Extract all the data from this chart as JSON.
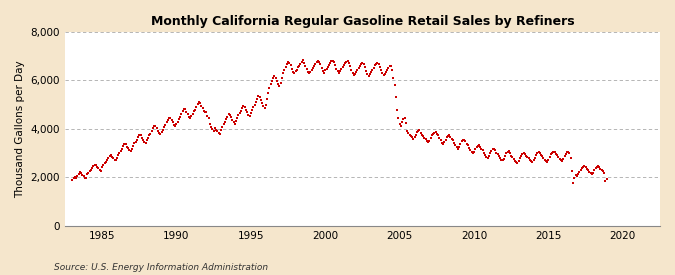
{
  "title": "Monthly California Regular Gasoline Retail Sales by Refiners",
  "ylabel": "Thousand Gallons per Day",
  "source": "Source: U.S. Energy Information Administration",
  "figure_bg_color": "#f5e6cc",
  "plot_bg_color": "#ffffff",
  "marker_color": "#cc0000",
  "grid_color": "#aaaaaa",
  "ylim": [
    0,
    8000
  ],
  "yticks": [
    0,
    2000,
    4000,
    6000,
    8000
  ],
  "ytick_labels": [
    "0",
    "2,000",
    "4,000",
    "6,000",
    "8,000"
  ],
  "xticks": [
    1985,
    1990,
    1995,
    2000,
    2005,
    2010,
    2015,
    2020
  ],
  "xlim": [
    1982.5,
    2022.5
  ],
  "start_year": 1983,
  "start_month": 1,
  "values": [
    1900,
    1980,
    2020,
    1960,
    2060,
    2140,
    2210,
    2190,
    2110,
    2060,
    1990,
    1960,
    2120,
    2180,
    2260,
    2300,
    2380,
    2450,
    2520,
    2500,
    2420,
    2370,
    2300,
    2270,
    2420,
    2520,
    2580,
    2640,
    2720,
    2800,
    2880,
    2920,
    2840,
    2800,
    2720,
    2700,
    2820,
    2940,
    3020,
    3100,
    3180,
    3280,
    3380,
    3360,
    3270,
    3220,
    3120,
    3080,
    3180,
    3300,
    3400,
    3470,
    3560,
    3660,
    3760,
    3730,
    3640,
    3560,
    3460,
    3420,
    3540,
    3640,
    3740,
    3800,
    3920,
    4020,
    4140,
    4110,
    4020,
    3930,
    3820,
    3780,
    3860,
    3960,
    4060,
    4150,
    4280,
    4380,
    4470,
    4460,
    4360,
    4270,
    4160,
    4100,
    4200,
    4300,
    4420,
    4500,
    4620,
    4720,
    4840,
    4820,
    4710,
    4620,
    4500,
    4440,
    4540,
    4620,
    4730,
    4790,
    4900,
    5010,
    5110,
    5070,
    4960,
    4850,
    4740,
    4680,
    4700,
    4550,
    4430,
    4220,
    4080,
    4000,
    3900,
    4020,
    3960,
    3900,
    3830,
    3800,
    3940,
    4080,
    4200,
    4280,
    4400,
    4510,
    4610,
    4580,
    4480,
    4380,
    4270,
    4210,
    4320,
    4440,
    4560,
    4640,
    4750,
    4860,
    4940,
    4910,
    4800,
    4700,
    4590,
    4530,
    4650,
    4780,
    4900,
    4980,
    5100,
    5220,
    5340,
    5300,
    5180,
    5070,
    4950,
    4880,
    5000,
    5220,
    5500,
    5700,
    5850,
    5960,
    6080,
    6200,
    6100,
    5980,
    5850,
    5780,
    5880,
    6080,
    6300,
    6420,
    6560,
    6680,
    6780,
    6720,
    6620,
    6490,
    6360,
    6290,
    6380,
    6440,
    6540,
    6600,
    6680,
    6780,
    6850,
    6700,
    6600,
    6460,
    6350,
    6290,
    6360,
    6430,
    6520,
    6580,
    6670,
    6770,
    6820,
    6770,
    6660,
    6510,
    6390,
    6320,
    6420,
    6490,
    6570,
    6640,
    6720,
    6800,
    6820,
    6760,
    6640,
    6490,
    6380,
    6320,
    6400,
    6470,
    6550,
    6620,
    6700,
    6760,
    6810,
    6710,
    6590,
    6450,
    6300,
    6230,
    6280,
    6350,
    6440,
    6510,
    6590,
    6670,
    6720,
    6670,
    6540,
    6400,
    6260,
    6200,
    6260,
    6340,
    6440,
    6530,
    6620,
    6680,
    6720,
    6680,
    6550,
    6420,
    6290,
    6230,
    6280,
    6360,
    6440,
    6510,
    6590,
    6580,
    6440,
    6100,
    5800,
    5320,
    4800,
    4450,
    4200,
    4100,
    4280,
    4420,
    4450,
    4230,
    3900,
    3850,
    3750,
    3700,
    3650,
    3590,
    3650,
    3760,
    3870,
    3930,
    3970,
    3850,
    3740,
    3690,
    3630,
    3570,
    3510,
    3460,
    3520,
    3630,
    3740,
    3800,
    3850,
    3880,
    3790,
    3730,
    3630,
    3530,
    3430,
    3380,
    3440,
    3550,
    3660,
    3720,
    3750,
    3680,
    3580,
    3530,
    3430,
    3320,
    3240,
    3190,
    3250,
    3370,
    3490,
    3540,
    3560,
    3500,
    3390,
    3340,
    3230,
    3130,
    3050,
    3010,
    3060,
    3160,
    3250,
    3310,
    3340,
    3270,
    3170,
    3120,
    3010,
    2920,
    2850,
    2820,
    2870,
    2990,
    3100,
    3160,
    3180,
    3110,
    3010,
    2960,
    2870,
    2790,
    2730,
    2700,
    2760,
    2880,
    2990,
    3040,
    3070,
    3000,
    2900,
    2860,
    2770,
    2690,
    2640,
    2610,
    2670,
    2790,
    2900,
    2960,
    3000,
    2980,
    2900,
    2860,
    2780,
    2710,
    2660,
    2630,
    2700,
    2820,
    2940,
    3000,
    3040,
    3010,
    2930,
    2900,
    2810,
    2730,
    2680,
    2650,
    2710,
    2830,
    2950,
    3010,
    3060,
    3040,
    2960,
    2930,
    2850,
    2770,
    2720,
    2690,
    2750,
    2870,
    2980,
    3030,
    3060,
    3000,
    2790,
    2250,
    1780,
    1980,
    2100,
    2050,
    2130,
    2240,
    2320,
    2390,
    2440,
    2480,
    2410,
    2360,
    2290,
    2230,
    2180,
    2150,
    2200,
    2310,
    2380,
    2420,
    2470,
    2430,
    2360,
    2320,
    2260,
    2200,
    1870,
    1950
  ]
}
